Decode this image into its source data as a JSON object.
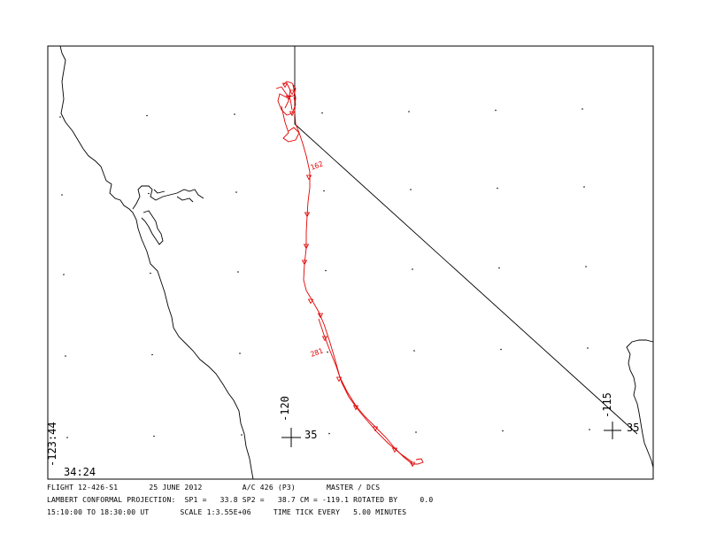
{
  "map": {
    "corner_lon_label": "-123:44",
    "corner_lat_label": "34:24",
    "grid_labels": [
      {
        "lon": "-120",
        "lat": "35"
      },
      {
        "lon": "-115",
        "lat": "35"
      }
    ],
    "track_time_labels": [
      "162",
      "281"
    ],
    "colors": {
      "track": "#e00000",
      "coast": "#000000",
      "border": "#000000"
    }
  },
  "footer": {
    "line1": "FLIGHT 12-426-S1       25 JUNE 2012         A/C 426 (P3)       MASTER / DCS",
    "line2": "LAMBERT CONFORMAL PROJECTION:  SP1 =   33.8 SP2 =   38.7 CM = -119.1 ROTATED BY     0.0",
    "line3": "15:10:00 TO 18:30:00 UT       SCALE 1:3.55E+06     TIME TICK EVERY   5.00 MINUTES"
  }
}
